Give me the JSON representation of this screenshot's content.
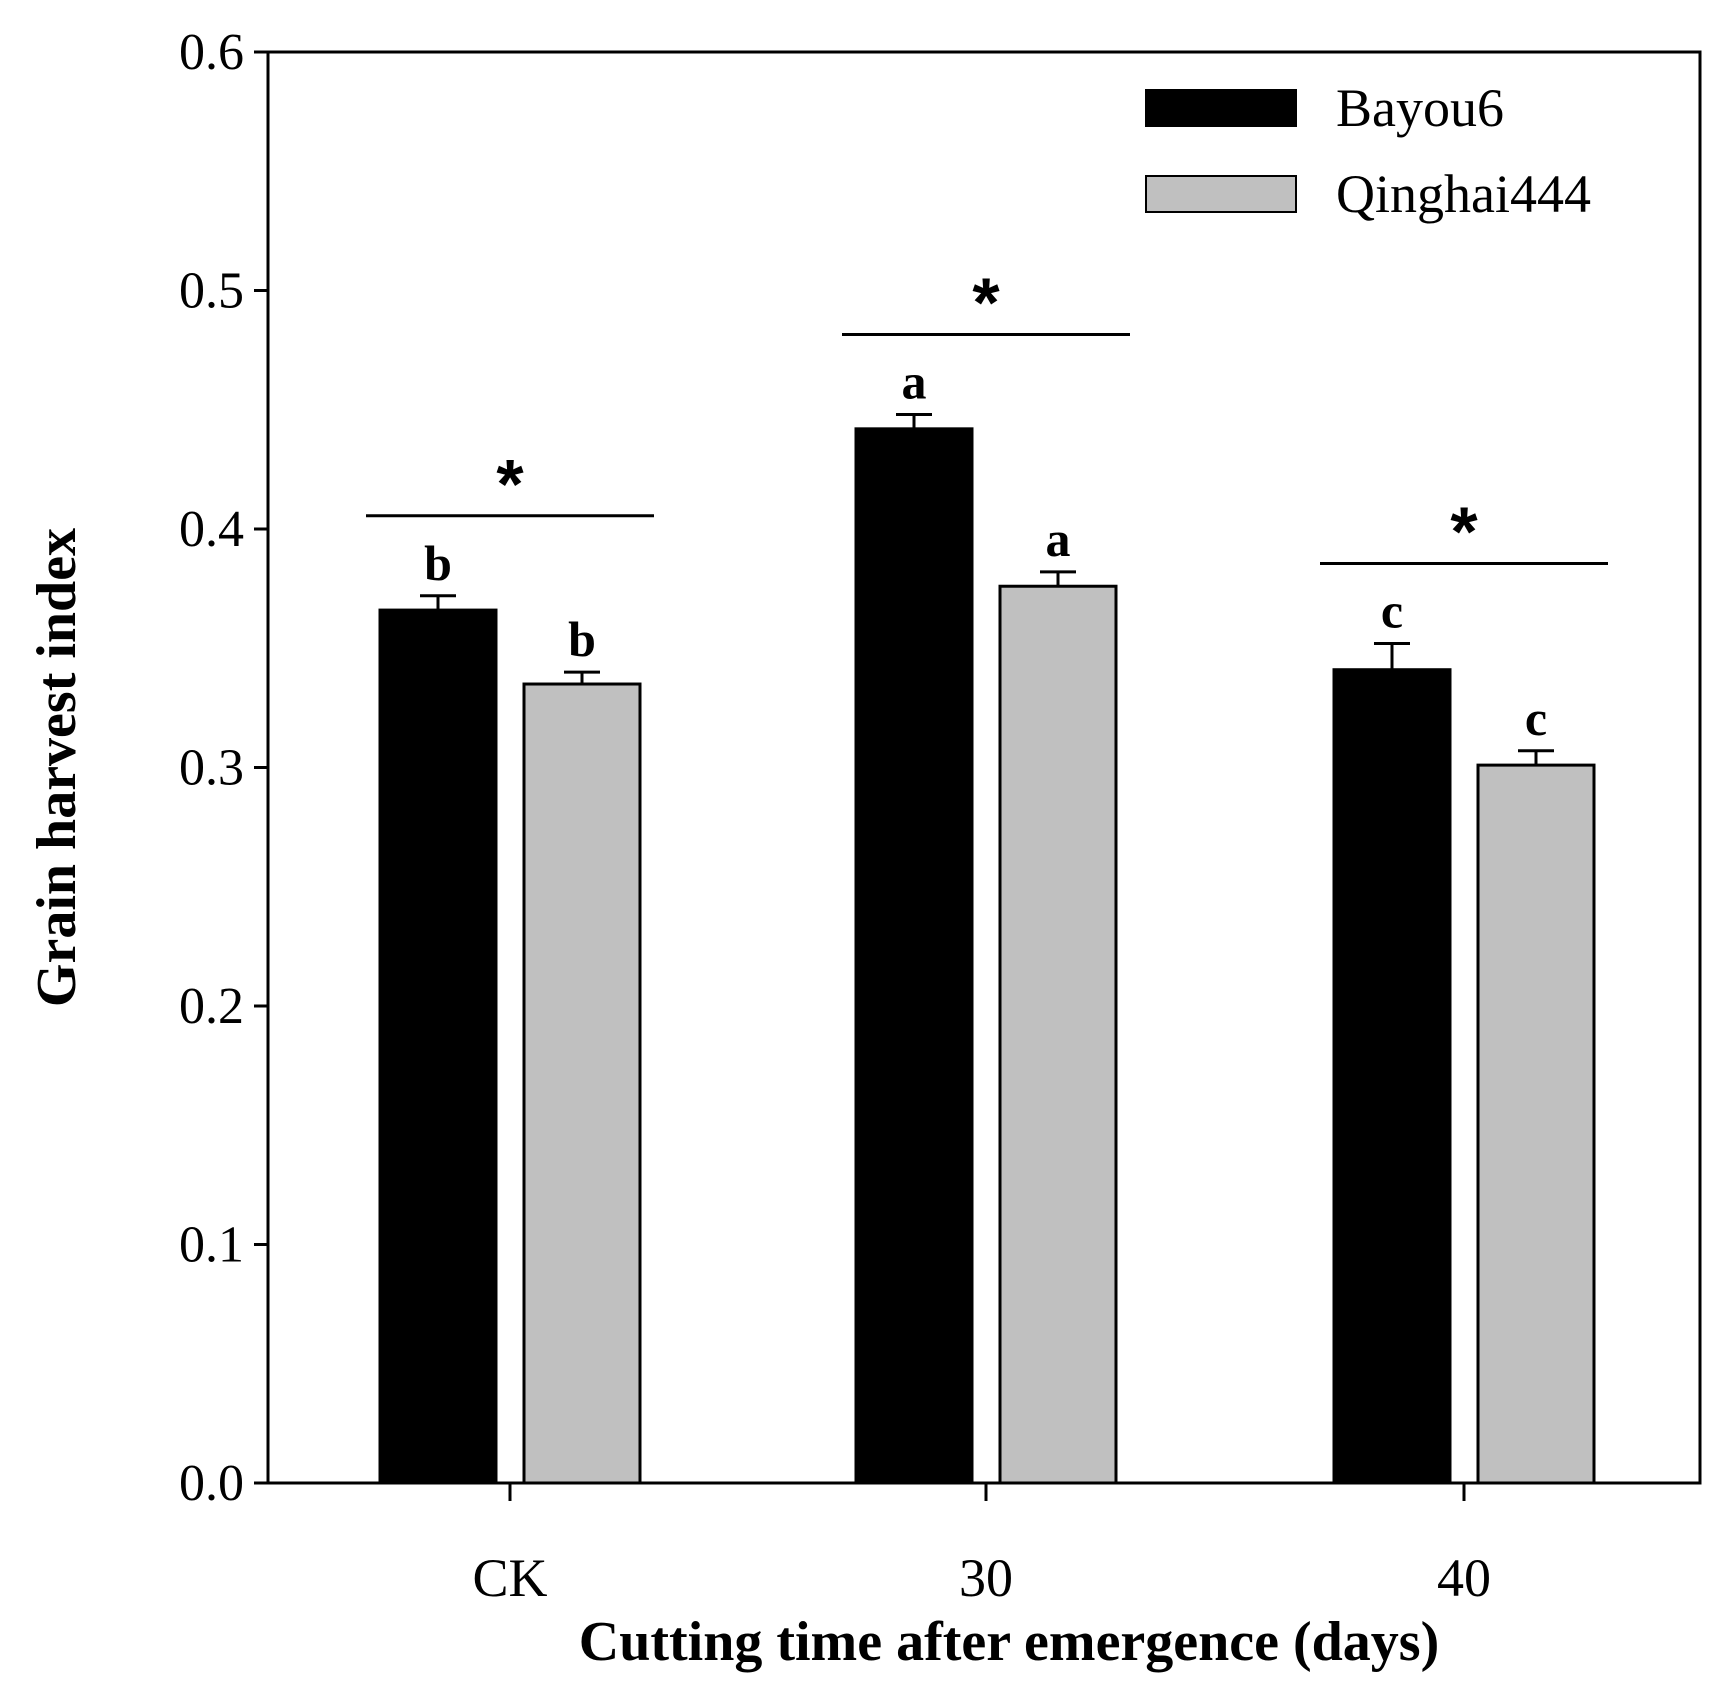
{
  "chart_data": {
    "type": "bar",
    "title": "",
    "xlabel": "Cutting time after emergence (days)",
    "ylabel": "Grain harvest index",
    "ylim": [
      0,
      0.6
    ],
    "yticks": [
      0.0,
      0.1,
      0.2,
      0.3,
      0.4,
      0.5,
      0.6
    ],
    "ytick_labels": [
      "0.0",
      "0.1",
      "0.2",
      "0.3",
      "0.4",
      "0.5",
      "0.6"
    ],
    "categories": [
      "CK",
      "30",
      "40"
    ],
    "legend_position": "top-right",
    "grid": false,
    "series": [
      {
        "name": "Bayou6",
        "color": "#000000",
        "values": [
          0.366,
          0.442,
          0.341
        ],
        "errors": [
          0.006,
          0.006,
          0.011
        ],
        "letters": [
          "b",
          "a",
          "c"
        ]
      },
      {
        "name": "Qinghai444",
        "color": "#c0c0c0",
        "values": [
          0.335,
          0.376,
          0.301
        ],
        "errors": [
          0.005,
          0.006,
          0.006
        ],
        "letters": [
          "b",
          "a",
          "c"
        ]
      }
    ],
    "significance": [
      {
        "category": "CK",
        "label": "*"
      },
      {
        "category": "30",
        "label": "*"
      },
      {
        "category": "40",
        "label": "*"
      }
    ]
  }
}
